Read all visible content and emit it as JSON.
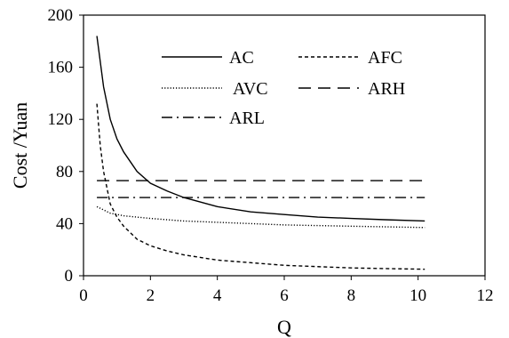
{
  "chart_data": {
    "type": "line",
    "xlabel": "Q",
    "ylabel": "Cost /Yuan",
    "xlim": [
      0,
      12
    ],
    "ylim": [
      0,
      200
    ],
    "xticks": [
      0,
      2,
      4,
      6,
      8,
      10,
      12
    ],
    "yticks": [
      0,
      40,
      80,
      120,
      160,
      200
    ],
    "grid": false,
    "legend_position": "top-right",
    "series": [
      {
        "name": "AC",
        "style": "solid",
        "x": [
          0.4,
          0.6,
          0.8,
          1.0,
          1.2,
          1.6,
          2.0,
          2.5,
          3.0,
          4.0,
          5.0,
          6.0,
          7.0,
          8.0,
          9.0,
          10.2
        ],
        "y": [
          184,
          145,
          120,
          105,
          95,
          80,
          71,
          65,
          60,
          53,
          49,
          47,
          45,
          44,
          43,
          42
        ]
      },
      {
        "name": "AFC",
        "style": "short-dash",
        "x": [
          0.4,
          0.5,
          0.6,
          0.8,
          1.0,
          1.2,
          1.6,
          2.0,
          2.5,
          3.0,
          4.0,
          5.0,
          6.0,
          7.0,
          8.0,
          9.0,
          10.2
        ],
        "y": [
          132,
          100,
          80,
          55,
          45,
          38,
          28,
          23,
          19,
          16,
          12,
          10,
          8,
          7,
          6,
          5.5,
          5
        ]
      },
      {
        "name": "AVC",
        "style": "dotted",
        "x": [
          0.4,
          0.8,
          1.2,
          2.0,
          3.0,
          4.0,
          6.0,
          8.0,
          10.2
        ],
        "y": [
          53,
          48,
          46,
          44,
          42,
          41,
          39,
          38,
          37
        ]
      },
      {
        "name": "ARH",
        "style": "long-dash",
        "x": [
          0.4,
          10.2
        ],
        "y": [
          73,
          73
        ]
      },
      {
        "name": "ARL",
        "style": "dash-dot",
        "x": [
          0.4,
          10.2
        ],
        "y": [
          60,
          60
        ]
      }
    ]
  }
}
